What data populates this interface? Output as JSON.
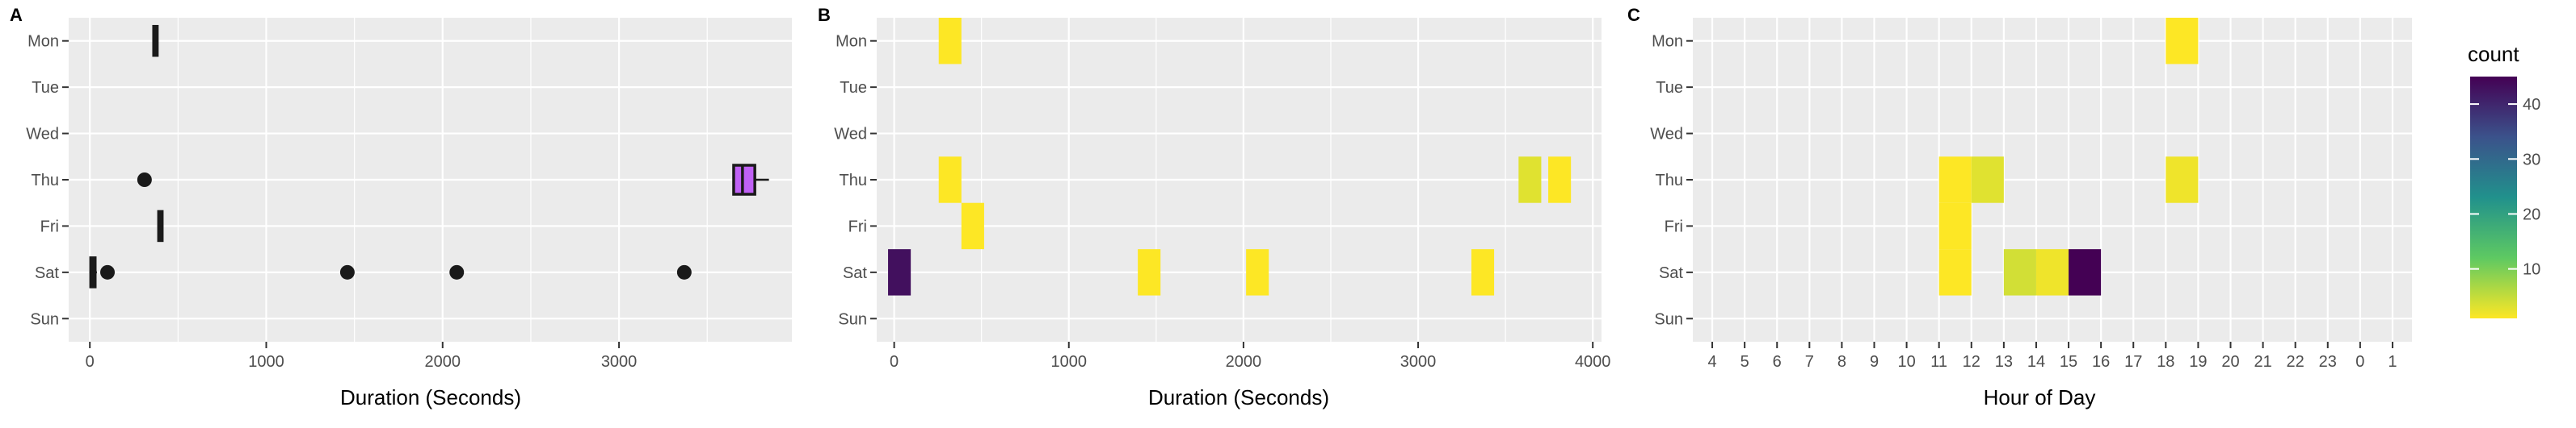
{
  "colors": {
    "panel_bg": "#ebebeb",
    "grid": "#ffffff",
    "point": "#1a1a1a",
    "box_fill": "#c061f5"
  },
  "days": [
    "Mon",
    "Tue",
    "Wed",
    "Thu",
    "Fri",
    "Sat",
    "Sun"
  ],
  "legend": {
    "title": "count",
    "ticks": [
      10,
      20,
      30,
      40
    ]
  },
  "chart_data": [
    {
      "panel": "A",
      "type": "boxplot",
      "xlabel": "Duration (Seconds)",
      "ylabel": "",
      "xlim": [
        -120,
        3980
      ],
      "xticks": [
        0,
        1000,
        2000,
        3000
      ],
      "categories": [
        "Mon",
        "Tue",
        "Wed",
        "Thu",
        "Fri",
        "Sat",
        "Sun"
      ],
      "boxes": [
        {
          "day": "Mon",
          "q1": 362,
          "median": 372,
          "q3": 382,
          "whisker_low": 362,
          "whisker_high": 382,
          "outliers": []
        },
        {
          "day": "Thu",
          "q1": 3650,
          "median": 3700,
          "q3": 3770,
          "whisker_low": 3650,
          "whisker_high": 3850,
          "outliers": [
            310
          ]
        },
        {
          "day": "Fri",
          "q1": 390,
          "median": 400,
          "q3": 410,
          "whisker_low": 390,
          "whisker_high": 410,
          "outliers": []
        },
        {
          "day": "Sat",
          "q1": 5,
          "median": 15,
          "q3": 30,
          "whisker_low": 0,
          "whisker_high": 40,
          "outliers": [
            100,
            1460,
            2080,
            3370
          ]
        }
      ]
    },
    {
      "panel": "B",
      "type": "heatmap",
      "xlabel": "Duration (Seconds)",
      "ylabel": "",
      "xlim": [
        -100,
        4050
      ],
      "xticks": [
        0,
        1000,
        2000,
        3000,
        4000
      ],
      "categories": [
        "Mon",
        "Tue",
        "Wed",
        "Thu",
        "Fri",
        "Sat",
        "Sun"
      ],
      "bin_width": 130,
      "cells": [
        {
          "day": "Mon",
          "x": 320,
          "count": 1
        },
        {
          "day": "Thu",
          "x": 320,
          "count": 1
        },
        {
          "day": "Thu",
          "x": 3640,
          "count": 3
        },
        {
          "day": "Thu",
          "x": 3810,
          "count": 1
        },
        {
          "day": "Fri",
          "x": 450,
          "count": 1
        },
        {
          "day": "Sat",
          "x": 30,
          "count": 43
        },
        {
          "day": "Sat",
          "x": 1460,
          "count": 1
        },
        {
          "day": "Sat",
          "x": 2080,
          "count": 1
        },
        {
          "day": "Sat",
          "x": 3370,
          "count": 1
        }
      ]
    },
    {
      "panel": "C",
      "type": "heatmap",
      "xlabel": "Hour of Day",
      "ylabel": "",
      "categories": [
        "Mon",
        "Tue",
        "Wed",
        "Thu",
        "Fri",
        "Sat",
        "Sun"
      ],
      "x_categories": [
        "4",
        "5",
        "6",
        "7",
        "8",
        "9",
        "10",
        "11",
        "12",
        "13",
        "14",
        "15",
        "16",
        "17",
        "18",
        "19",
        "20",
        "21",
        "22",
        "23",
        "0",
        "1"
      ],
      "cells": [
        {
          "day": "Mon",
          "hour": "18",
          "count": 1
        },
        {
          "day": "Thu",
          "hour": "11",
          "count": 1
        },
        {
          "day": "Thu",
          "hour": "12",
          "count": 3
        },
        {
          "day": "Thu",
          "hour": "18",
          "count": 2
        },
        {
          "day": "Fri",
          "hour": "11",
          "count": 1
        },
        {
          "day": "Sat",
          "hour": "11",
          "count": 1
        },
        {
          "day": "Sat",
          "hour": "13",
          "count": 4
        },
        {
          "day": "Sat",
          "hour": "14",
          "count": 2
        },
        {
          "day": "Sat",
          "hour": "15",
          "count": 45
        }
      ]
    }
  ]
}
